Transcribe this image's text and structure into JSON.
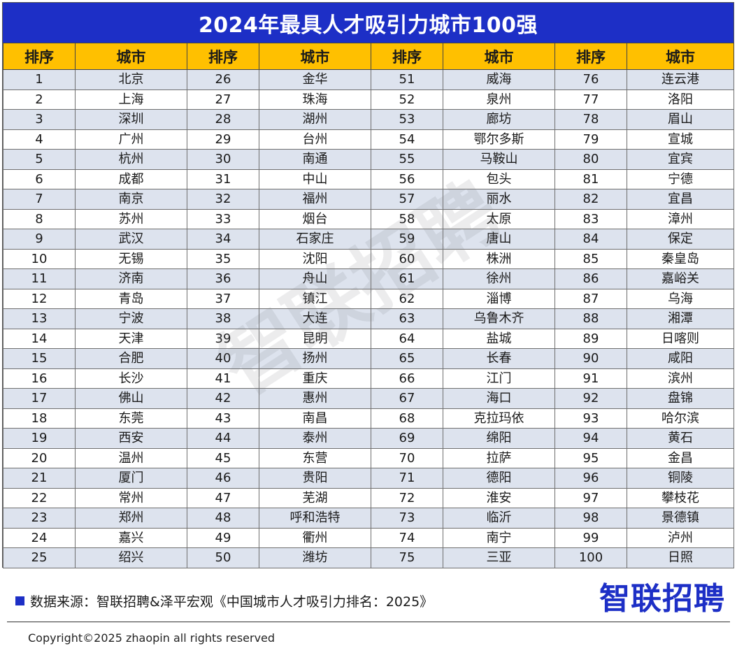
{
  "title": "2024年最具人才吸引力城市100强",
  "headers": [
    "排序",
    "城市",
    "排序",
    "城市",
    "排序",
    "城市",
    "排序",
    "城市"
  ],
  "rows": [
    [
      "1",
      "北京",
      "26",
      "金华",
      "51",
      "威海",
      "76",
      "连云港"
    ],
    [
      "2",
      "上海",
      "27",
      "珠海",
      "52",
      "泉州",
      "77",
      "洛阳"
    ],
    [
      "3",
      "深圳",
      "28",
      "湖州",
      "53",
      "廊坊",
      "78",
      "眉山"
    ],
    [
      "4",
      "广州",
      "29",
      "台州",
      "54",
      "鄂尔多斯",
      "79",
      "宣城"
    ],
    [
      "5",
      "杭州",
      "30",
      "南通",
      "55",
      "马鞍山",
      "80",
      "宜宾"
    ],
    [
      "6",
      "成都",
      "31",
      "中山",
      "56",
      "包头",
      "81",
      "宁德"
    ],
    [
      "7",
      "南京",
      "32",
      "福州",
      "57",
      "丽水",
      "82",
      "宜昌"
    ],
    [
      "8",
      "苏州",
      "33",
      "烟台",
      "58",
      "太原",
      "83",
      "漳州"
    ],
    [
      "9",
      "武汉",
      "34",
      "石家庄",
      "59",
      "唐山",
      "84",
      "保定"
    ],
    [
      "10",
      "无锡",
      "35",
      "沈阳",
      "60",
      "株洲",
      "85",
      "秦皇岛"
    ],
    [
      "11",
      "济南",
      "36",
      "舟山",
      "61",
      "徐州",
      "86",
      "嘉峪关"
    ],
    [
      "12",
      "青岛",
      "37",
      "镇江",
      "62",
      "淄博",
      "87",
      "乌海"
    ],
    [
      "13",
      "宁波",
      "38",
      "大连",
      "63",
      "乌鲁木齐",
      "88",
      "湘潭"
    ],
    [
      "14",
      "天津",
      "39",
      "昆明",
      "64",
      "盐城",
      "89",
      "日喀则"
    ],
    [
      "15",
      "合肥",
      "40",
      "扬州",
      "65",
      "长春",
      "90",
      "咸阳"
    ],
    [
      "16",
      "长沙",
      "41",
      "重庆",
      "66",
      "江门",
      "91",
      "滨州"
    ],
    [
      "17",
      "佛山",
      "42",
      "惠州",
      "67",
      "海口",
      "92",
      "盘锦"
    ],
    [
      "18",
      "东莞",
      "43",
      "南昌",
      "68",
      "克拉玛依",
      "93",
      "哈尔滨"
    ],
    [
      "19",
      "西安",
      "44",
      "泰州",
      "69",
      "绵阳",
      "94",
      "黄石"
    ],
    [
      "20",
      "温州",
      "45",
      "东营",
      "70",
      "拉萨",
      "95",
      "金昌"
    ],
    [
      "21",
      "厦门",
      "46",
      "贵阳",
      "71",
      "德阳",
      "96",
      "铜陵"
    ],
    [
      "22",
      "常州",
      "47",
      "芜湖",
      "72",
      "淮安",
      "97",
      "攀枝花"
    ],
    [
      "23",
      "郑州",
      "48",
      "呼和浩特",
      "73",
      "临沂",
      "98",
      "景德镇"
    ],
    [
      "24",
      "嘉兴",
      "49",
      "衢州",
      "74",
      "南宁",
      "99",
      "泸州"
    ],
    [
      "25",
      "绍兴",
      "50",
      "潍坊",
      "75",
      "三亚",
      "100",
      "日照"
    ]
  ],
  "watermark": "智联招聘",
  "source": "数据来源：智联招聘&泽平宏观《中国城市人才吸引力排名：2025》",
  "logo": "智联招聘",
  "copyright": "Copyright©2025 zhaopin all rights reserved",
  "colors": {
    "title_bg": "#1d2fc6",
    "header_bg": "#ffc000",
    "row_alt_bg": "#dde3ee"
  }
}
